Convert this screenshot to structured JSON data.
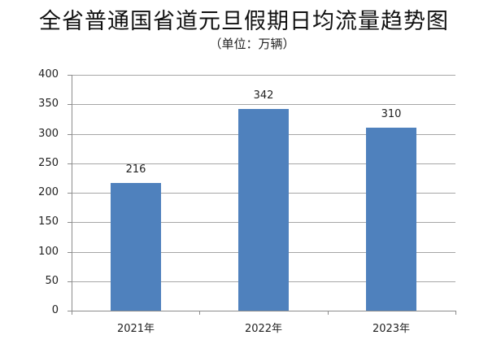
{
  "chart_data": {
    "type": "bar",
    "title": "全省普通国省道元旦假期日均流量趋势图",
    "subtitle": "（单位：万辆）",
    "categories": [
      "2021年",
      "2022年",
      "2023年"
    ],
    "values": [
      216,
      342,
      310
    ],
    "data_labels": [
      "216",
      "342",
      "310"
    ],
    "xlabel": "",
    "ylabel": "",
    "ylim": [
      0,
      400
    ],
    "yticks": [
      "0",
      "50",
      "100",
      "150",
      "200",
      "250",
      "300",
      "350",
      "400"
    ],
    "grid": true,
    "legend": "none",
    "bar_color": "#4f81bd"
  }
}
